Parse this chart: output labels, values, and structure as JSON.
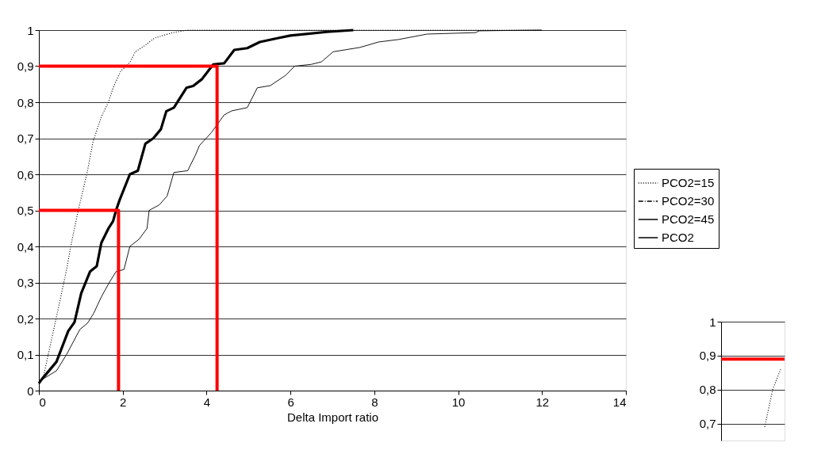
{
  "chart_data": [
    {
      "type": "line",
      "xlabel": "Delta Import ratio",
      "xlim": [
        0,
        14
      ],
      "xticks": [
        0,
        2,
        4,
        6,
        8,
        10,
        12,
        14
      ],
      "ylim": [
        0,
        1
      ],
      "yticks": [
        {
          "value": 0,
          "label": "0"
        },
        {
          "value": 0.1,
          "label": "0,1"
        },
        {
          "value": 0.2,
          "label": "0,2"
        },
        {
          "value": 0.3,
          "label": "0,3"
        },
        {
          "value": 0.4,
          "label": "0,4"
        },
        {
          "value": 0.5,
          "label": "0,5"
        },
        {
          "value": 0.6,
          "label": "0,6"
        },
        {
          "value": 0.7,
          "label": "0,7"
        },
        {
          "value": 0.8,
          "label": "0,8"
        },
        {
          "value": 0.9,
          "label": "0,9"
        },
        {
          "value": 1,
          "label": "1"
        }
      ],
      "grid": "y",
      "legend": "right",
      "series": [
        {
          "name": "PCO2=15",
          "color": "#000000",
          "line_style": "dotted",
          "x": [
            0,
            0.11,
            0.28,
            0.42,
            0.55,
            0.66,
            0.76,
            0.92,
            1.01,
            1.16,
            1.29,
            1.49,
            1.66,
            1.77,
            1.95,
            2.17,
            2.3,
            2.5,
            2.76,
            3.19,
            3.55,
            12
          ],
          "values": [
            0.02,
            0.04,
            0.13,
            0.205,
            0.275,
            0.335,
            0.4,
            0.49,
            0.535,
            0.61,
            0.69,
            0.76,
            0.8,
            0.84,
            0.886,
            0.91,
            0.94,
            0.955,
            0.978,
            0.993,
            1.0,
            1.0
          ]
        },
        {
          "name": "PCO2=30",
          "color": "#000000",
          "line_style": "dashdot"
        },
        {
          "name": "PCO2=45",
          "color": "#000000",
          "line_style": "solid",
          "x": [
            0,
            0.11,
            0.42,
            0.66,
            0.98,
            1.16,
            1.31,
            1.49,
            1.68,
            1.84,
            2.03,
            2.17,
            2.39,
            2.58,
            2.63,
            2.87,
            3.06,
            3.22,
            3.55,
            3.74,
            3.83,
            4.11,
            4.42,
            4.6,
            4.97,
            5.21,
            5.52,
            5.89,
            6.1,
            6.5,
            6.74,
            7.02,
            7.66,
            8.1,
            8.58,
            9.26,
            10.42,
            10.5,
            11.9,
            12
          ],
          "values": [
            0.02,
            0.033,
            0.055,
            0.1,
            0.17,
            0.187,
            0.215,
            0.26,
            0.3,
            0.33,
            0.336,
            0.4,
            0.42,
            0.45,
            0.5,
            0.515,
            0.54,
            0.605,
            0.61,
            0.655,
            0.68,
            0.715,
            0.765,
            0.776,
            0.785,
            0.84,
            0.846,
            0.875,
            0.9,
            0.905,
            0.912,
            0.94,
            0.952,
            0.967,
            0.974,
            0.989,
            0.993,
            0.998,
            1.0,
            1.0
          ]
        },
        {
          "name": "PCO2",
          "color": "#000000",
          "line_style": "solid",
          "x": [
            0,
            0.06,
            0.42,
            0.7,
            0.85,
            1.01,
            1.22,
            1.38,
            1.49,
            1.66,
            1.77,
            1.84,
            1.93,
            2.17,
            2.36,
            2.54,
            2.73,
            2.91,
            3.04,
            3.22,
            3.52,
            3.68,
            3.89,
            4.16,
            4.42,
            4.66,
            4.97,
            5.27,
            5.71,
            6.0,
            6.87,
            7.5
          ],
          "values": [
            0.02,
            0.03,
            0.08,
            0.165,
            0.19,
            0.27,
            0.33,
            0.345,
            0.41,
            0.45,
            0.47,
            0.5,
            0.53,
            0.6,
            0.61,
            0.685,
            0.7,
            0.725,
            0.775,
            0.785,
            0.84,
            0.845,
            0.864,
            0.905,
            0.908,
            0.945,
            0.95,
            0.967,
            0.978,
            0.985,
            0.995,
            1.0
          ]
        },
        {
          "color": "#ff0000",
          "line_style": "solid",
          "x": [
            0,
            4.25,
            4.25
          ],
          "values": [
            0.9,
            0.9,
            0
          ]
        },
        {
          "color": "#ff0000",
          "line_style": "solid",
          "x": [
            0,
            1.9,
            1.9
          ],
          "values": [
            0.5,
            0.5,
            0
          ]
        }
      ]
    },
    {
      "type": "line",
      "categories": [
        null,
        null,
        null,
        null,
        null,
        null,
        null,
        null
      ],
      "ylim": [
        0.65,
        1
      ],
      "yticks": [
        {
          "value": 0.7,
          "label": "0,7"
        },
        {
          "value": 0.8,
          "label": "0,8"
        },
        {
          "value": 0.9,
          "label": "0,9"
        },
        {
          "value": 1,
          "label": "1"
        }
      ],
      "grid": "y",
      "tick_labels": "y",
      "ref_lines": [
        {
          "axis": "y",
          "value": 0.89,
          "color": "#ff0000"
        }
      ],
      "series": [
        {
          "color": "#000000",
          "line_style": "dotted",
          "values": [
            null,
            null,
            null,
            null,
            null,
            0.69,
            0.8,
            0.86
          ]
        }
      ]
    }
  ]
}
